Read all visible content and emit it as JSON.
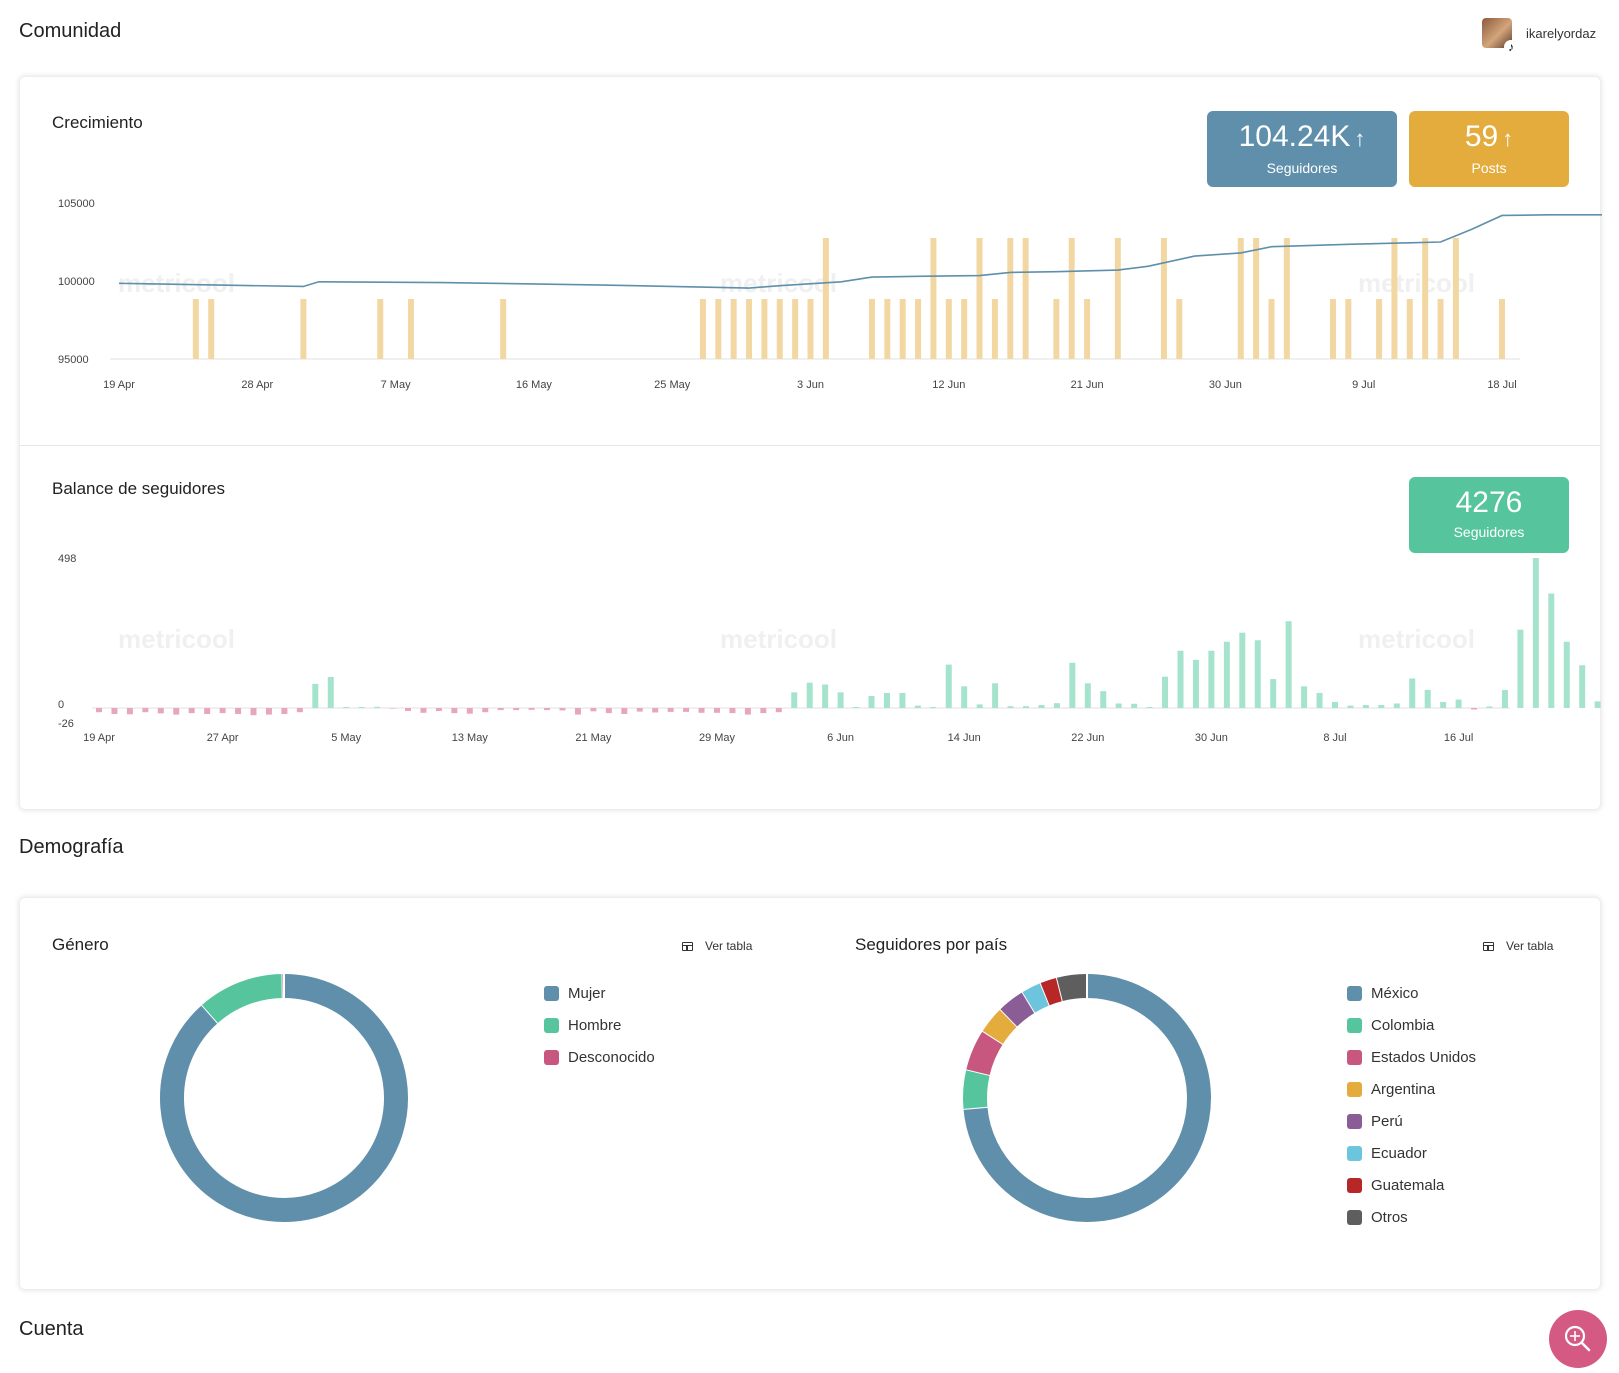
{
  "header": {
    "section_title": "Comunidad",
    "username": "ikarelyordaz",
    "avatar": "avatar-photo",
    "platform_icon": "tiktok-icon"
  },
  "growth": {
    "title": "Crecimiento",
    "followers_kpi": {
      "value": "104.24K",
      "label": "Seguidores",
      "color": "#5f8fab"
    },
    "posts_kpi": {
      "value": "59",
      "label": "Posts",
      "color": "#e4ab3d"
    },
    "watermark": "metricool"
  },
  "balance": {
    "title": "Balance de seguidores",
    "kpi": {
      "value": "4276",
      "label": "Seguidores",
      "color": "#56c59e"
    },
    "watermark": "metricool"
  },
  "demography": {
    "section_title": "Demografía",
    "gender": {
      "title": "Género",
      "ver_tabla": "Ver tabla",
      "legend": [
        {
          "label": "Mujer",
          "color": "#5f8fab"
        },
        {
          "label": "Hombre",
          "color": "#56c59e"
        },
        {
          "label": "Desconocido",
          "color": "#c8577f"
        }
      ]
    },
    "country": {
      "title": "Seguidores por país",
      "ver_tabla": "Ver tabla",
      "legend": [
        {
          "label": "México",
          "color": "#5f8fab"
        },
        {
          "label": "Colombia",
          "color": "#56c59e"
        },
        {
          "label": "Estados Unidos",
          "color": "#c8577f"
        },
        {
          "label": "Argentina",
          "color": "#e4ab3d"
        },
        {
          "label": "Perú",
          "color": "#8a5d96"
        },
        {
          "label": "Ecuador",
          "color": "#6cc5dc"
        },
        {
          "label": "Guatemala",
          "color": "#b82727"
        },
        {
          "label": "Otros",
          "color": "#5e5e5e"
        }
      ]
    }
  },
  "footer": {
    "section_title": "Cuenta",
    "fab_icon": "search-analytics-icon"
  },
  "chart_data": [
    {
      "type": "line",
      "title": "Crecimiento",
      "ylim": [
        95000,
        105000
      ],
      "yticks": [
        "105000",
        "100000",
        "95000"
      ],
      "xticks": [
        "19 Apr",
        "28 Apr",
        "7 May",
        "16 May",
        "25 May",
        "3 Jun",
        "12 Jun",
        "21 Jun",
        "30 Jun",
        "9 Jul",
        "18 Jul"
      ],
      "date_range": [
        "2023-04-19",
        "2023-07-18"
      ],
      "line_color": "#5f8fab",
      "bar_color": "#f2d7a3",
      "series": [
        {
          "name": "Seguidores",
          "points": [
            [
              "2023-04-19",
              99850
            ],
            [
              "2023-05-01",
              99650
            ],
            [
              "2023-05-02",
              99950
            ],
            [
              "2023-05-10",
              99900
            ],
            [
              "2023-05-20",
              99750
            ],
            [
              "2023-05-30",
              99550
            ],
            [
              "2023-06-01",
              99700
            ],
            [
              "2023-06-05",
              99950
            ],
            [
              "2023-06-07",
              100250
            ],
            [
              "2023-06-10",
              100300
            ],
            [
              "2023-06-14",
              100350
            ],
            [
              "2023-06-16",
              100550
            ],
            [
              "2023-06-19",
              100600
            ],
            [
              "2023-06-23",
              100700
            ],
            [
              "2023-06-25",
              100950
            ],
            [
              "2023-06-28",
              101600
            ],
            [
              "2023-07-01",
              101800
            ],
            [
              "2023-07-03",
              102200
            ],
            [
              "2023-07-08",
              102350
            ],
            [
              "2023-07-12",
              102450
            ],
            [
              "2023-07-14",
              102500
            ],
            [
              "2023-07-16",
              103300
            ],
            [
              "2023-07-18",
              104200
            ],
            [
              "2023-07-21",
              104240
            ],
            [
              "2023-07-25",
              104240
            ]
          ]
        },
        {
          "name": "Posts",
          "bars": [
            [
              "2023-04-24",
              1
            ],
            [
              "2023-04-25",
              1
            ],
            [
              "2023-05-01",
              1
            ],
            [
              "2023-05-06",
              1
            ],
            [
              "2023-05-08",
              1
            ],
            [
              "2023-05-14",
              1
            ],
            [
              "2023-05-27",
              1
            ],
            [
              "2023-05-28",
              1
            ],
            [
              "2023-05-29",
              1
            ],
            [
              "2023-05-30",
              1
            ],
            [
              "2023-05-31",
              1
            ],
            [
              "2023-06-01",
              1
            ],
            [
              "2023-06-02",
              1
            ],
            [
              "2023-06-03",
              1
            ],
            [
              "2023-06-04",
              2
            ],
            [
              "2023-06-07",
              1
            ],
            [
              "2023-06-08",
              1
            ],
            [
              "2023-06-09",
              1
            ],
            [
              "2023-06-10",
              1
            ],
            [
              "2023-06-11",
              2
            ],
            [
              "2023-06-12",
              1
            ],
            [
              "2023-06-13",
              1
            ],
            [
              "2023-06-14",
              2
            ],
            [
              "2023-06-15",
              1
            ],
            [
              "2023-06-16",
              2
            ],
            [
              "2023-06-17",
              2
            ],
            [
              "2023-06-19",
              1
            ],
            [
              "2023-06-20",
              2
            ],
            [
              "2023-06-21",
              1
            ],
            [
              "2023-06-23",
              2
            ],
            [
              "2023-06-26",
              2
            ],
            [
              "2023-06-27",
              1
            ],
            [
              "2023-07-01",
              2
            ],
            [
              "2023-07-02",
              2
            ],
            [
              "2023-07-03",
              1
            ],
            [
              "2023-07-04",
              2
            ],
            [
              "2023-07-07",
              1
            ],
            [
              "2023-07-08",
              1
            ],
            [
              "2023-07-10",
              1
            ],
            [
              "2023-07-11",
              2
            ],
            [
              "2023-07-12",
              1
            ],
            [
              "2023-07-13",
              2
            ],
            [
              "2023-07-14",
              1
            ],
            [
              "2023-07-15",
              2
            ],
            [
              "2023-07-18",
              1
            ]
          ]
        }
      ]
    },
    {
      "type": "bar",
      "title": "Balance de seguidores",
      "ylim": [
        -26,
        498
      ],
      "yticks": [
        "498",
        "0",
        "-26"
      ],
      "xticks": [
        "19 Apr",
        "27 Apr",
        "5 May",
        "13 May",
        "21 May",
        "29 May",
        "6 Jun",
        "14 Jun",
        "22 Jun",
        "30 Jun",
        "8 Jul",
        "16 Jul"
      ],
      "start_date": "2023-04-19",
      "positive_color": "#a6e3cd",
      "negative_color": "#e8a6bc",
      "values": [
        -14,
        -20,
        -21,
        -14,
        -18,
        -22,
        -17,
        -20,
        -17,
        -20,
        -24,
        -22,
        -20,
        -14,
        80,
        103,
        3,
        2,
        4,
        -2,
        -10,
        -16,
        -10,
        -17,
        -19,
        -14,
        -7,
        -7,
        -6,
        -7,
        -8,
        -22,
        -11,
        -17,
        -20,
        -12,
        -15,
        -13,
        -13,
        -16,
        -16,
        -17,
        -22,
        -17,
        -14,
        52,
        84,
        78,
        52,
        0,
        40,
        50,
        50,
        8,
        0,
        144,
        72,
        12,
        82,
        6,
        6,
        10,
        16,
        150,
        82,
        56,
        15,
        14,
        0,
        104,
        190,
        160,
        190,
        220,
        250,
        225,
        96,
        288,
        72,
        50,
        20,
        8,
        10,
        10,
        15,
        98,
        60,
        20,
        28,
        -5,
        5,
        60,
        260,
        498,
        380,
        220,
        142,
        22
      ]
    },
    {
      "type": "pie",
      "title": "Género",
      "categories": [
        "Mujer",
        "Hombre",
        "Desconocido"
      ],
      "values": [
        88.5,
        11.3,
        0.2
      ]
    },
    {
      "type": "pie",
      "title": "Seguidores por país",
      "categories": [
        "México",
        "Colombia",
        "Estados Unidos",
        "Argentina",
        "Perú",
        "Ecuador",
        "Guatemala",
        "Otros"
      ],
      "values": [
        73.6,
        5.1,
        5.4,
        3.6,
        3.6,
        2.6,
        2.2,
        3.9
      ]
    }
  ]
}
